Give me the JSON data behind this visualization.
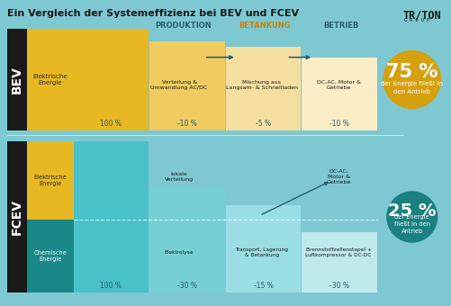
{
  "title": "Ein Vergleich der Systemeffizienz bei BEV und FCEV",
  "bg_color": "#7ec8d2",
  "col_headers": [
    "PRODUKTION",
    "BETANKUNG",
    "BETRIEB"
  ],
  "bev_label": "BEV",
  "fcev_label": "FCEV",
  "bev_gold": "#e8b822",
  "bev_gold_mid": "#f0cc60",
  "bev_gold_light2": "#f5dfa0",
  "bev_cream": "#faedc5",
  "fcev_teal_dark": "#1a8888",
  "fcev_teal_start": "#4ac0c8",
  "fcev_teal_mid": "#75cfd5",
  "fcev_teal_light": "#9adee3",
  "fcev_teal_lightest": "#beeaec",
  "dark_label": "#1a1a1a",
  "header_color": "#2a6070",
  "betankung_color": "#c8860a",
  "arrow_color": "#2a6070",
  "bev_steps_pct": [
    "100 %",
    "-10 %",
    "-5 %",
    "-10 %"
  ],
  "fcev_steps_pct": [
    "100 %",
    "-30 %",
    "-15 %",
    "-30 %"
  ],
  "bev_energy_label": "Elektrische\nEnergie",
  "fcev_elec_label": "Elektrische\nEnergie",
  "fcev_chem_label": "Chemische\nEnergie",
  "bev_icons": [
    "Verteilung &\nUmwandlung AC/DC",
    "Mischung aus\nLangsam- & Schnellladen",
    "DC-AC, Motor &\nGetriebe"
  ],
  "fcev_top_icons": [
    "lokale\nVerteilung",
    "",
    "DC-AC,\nMotor &\nGetriebe"
  ],
  "fcev_bot_icons": [
    "Elektrolyse",
    "Transport, Lagerung\n& Betankung",
    "Brennstoffzellenstapel +\nLuftkompressor & DC-DC"
  ],
  "bev_pct": "75 %",
  "bev_pct_sub": "der Energie fließt in\nden Antrieb",
  "bev_circle_color": "#d4a010",
  "fcev_pct": "25 %",
  "fcev_pct_sub": "der Energie\nfließt in den\nAntrieb",
  "fcev_circle_color": "#1a8080",
  "traton_line1": "TR/TON",
  "traton_line2": "G R O U P"
}
